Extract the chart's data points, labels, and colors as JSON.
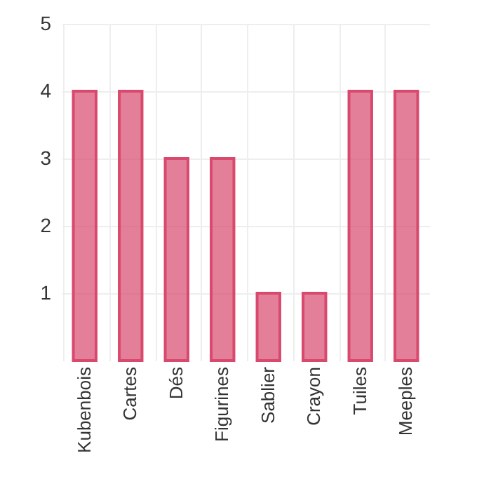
{
  "chart_data": {
    "type": "bar",
    "categories": [
      "Kubenbois",
      "Cartes",
      "Dés",
      "Figurines",
      "Sablier",
      "Crayon",
      "Tuiles",
      "Meeples"
    ],
    "values": [
      4,
      4,
      3,
      3,
      1,
      1,
      4,
      4
    ],
    "color": "#d9496e",
    "ylim": [
      0,
      5
    ],
    "yticks": [
      1,
      2,
      3,
      4,
      5
    ],
    "grid": true
  }
}
